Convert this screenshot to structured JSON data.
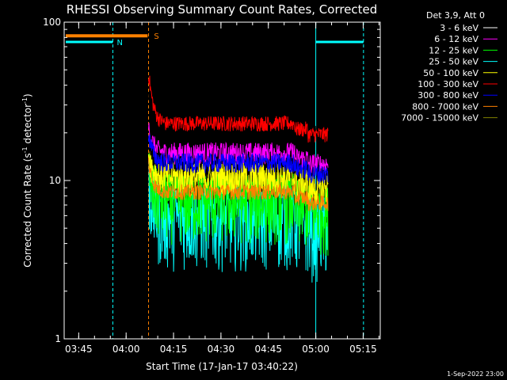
{
  "chart_data": {
    "type": "line",
    "title": "RHESSI Observing Summary Count Rates, Corrected",
    "ylabel_parts": {
      "pre": "Corrected Count Rate (s",
      "exp1": "-1",
      "mid": " detector",
      "exp2": "-1",
      "post": ")"
    },
    "xlabel": "Start Time (17-Jan-17 03:40:22)",
    "footer": "1-Sep-2022 23:00",
    "y_scale": "log",
    "ylim": [
      1,
      100
    ],
    "y_ticks": [
      {
        "value": 1,
        "label": "1"
      },
      {
        "value": 10,
        "label": "10"
      },
      {
        "value": 100,
        "label": "100"
      }
    ],
    "xlim_minutes": [
      0,
      100
    ],
    "x_ticks": [
      {
        "minute": 4.6,
        "label": "03:45"
      },
      {
        "minute": 19.6,
        "label": "04:00"
      },
      {
        "minute": 34.6,
        "label": "04:15"
      },
      {
        "minute": 49.6,
        "label": "04:30"
      },
      {
        "minute": 64.6,
        "label": "04:45"
      },
      {
        "minute": 79.6,
        "label": "05:00"
      },
      {
        "minute": 94.6,
        "label": "05:15"
      }
    ],
    "legend": {
      "header": "Det 3,9, Att 0",
      "entries": [
        {
          "label": "3 - 6 keV",
          "color": "#000000"
        },
        {
          "label": "6 - 12 keV",
          "color": "#ff00ff"
        },
        {
          "label": "12 - 25 keV",
          "color": "#00ff00"
        },
        {
          "label": "25 - 50 keV",
          "color": "#00ffff"
        },
        {
          "label": "50 - 100 keV",
          "color": "#ffff00"
        },
        {
          "label": "100 - 300 keV",
          "color": "#ff0000"
        },
        {
          "label": "300 - 800 keV",
          "color": "#0000ff"
        },
        {
          "label": "800 - 7000 keV",
          "color": "#ff8000"
        },
        {
          "label": "7000 - 15000 keV",
          "color": "#808000"
        }
      ]
    },
    "series": [
      {
        "label": "3 - 6 keV",
        "color": "#000000",
        "start": 26.7,
        "end": 83.5,
        "base": 24,
        "noise": 0.06,
        "spike": 35,
        "order": 1
      },
      {
        "label": "6 - 12 keV",
        "color": "#ff00ff",
        "start": 26.7,
        "end": 83.5,
        "base": 15,
        "noise": 0.1,
        "spike": 22,
        "order": 3
      },
      {
        "label": "12 - 25 keV",
        "color": "#00ff00",
        "start": 26.7,
        "end": 83.5,
        "base": 7.5,
        "noise": 0.3,
        "spike": 12,
        "order": 5
      },
      {
        "label": "25 - 50 keV",
        "color": "#00ffff",
        "start": 26.7,
        "end": 83.5,
        "base": 6.0,
        "noise": 0.35,
        "spike": 10,
        "order": 4
      },
      {
        "label": "50 - 100 keV",
        "color": "#ffff00",
        "start": 26.7,
        "end": 83.5,
        "base": 10.5,
        "noise": 0.15,
        "spike": 15,
        "order": 6
      },
      {
        "label": "100 - 300 keV",
        "color": "#ff0000",
        "start": 26.7,
        "end": 83.5,
        "base": 23,
        "noise": 0.07,
        "spike": 48,
        "order": 2
      },
      {
        "label": "300 - 800 keV",
        "color": "#0000ff",
        "start": 26.7,
        "end": 83.5,
        "base": 13,
        "noise": 0.09,
        "spike": 20,
        "order": 7
      },
      {
        "label": "800 - 7000 keV",
        "color": "#ff8000",
        "start": 26.7,
        "end": 83.5,
        "base": 8.5,
        "noise": 0.07,
        "spike": 13,
        "order": 8
      },
      {
        "label": "7000 - 15000 keV",
        "color": "#808000",
        "start": 26.7,
        "end": 83.5,
        "base": 9.5,
        "noise": 0.12,
        "spike": 14,
        "order": 0
      }
    ],
    "bars": {
      "saa": {
        "label": "S",
        "color": "#ff8000",
        "start": 0.5,
        "end": 26.4,
        "y": 82
      },
      "night": [
        {
          "label": "N",
          "color": "#00ffff",
          "start": 0.5,
          "end": 15.4,
          "y": 75
        },
        {
          "label": "",
          "color": "#00ffff",
          "start": 79.6,
          "end": 94.7,
          "y": 75
        }
      ]
    },
    "vertical_lines": [
      {
        "minute": 15.4,
        "color": "#00ffff",
        "style": "dashed"
      },
      {
        "minute": 26.7,
        "color": "#ff8000",
        "style": "dashed"
      },
      {
        "minute": 79.6,
        "color": "#00ffff",
        "style": "solid"
      },
      {
        "minute": 94.7,
        "color": "#00ffff",
        "style": "dashed"
      }
    ]
  }
}
